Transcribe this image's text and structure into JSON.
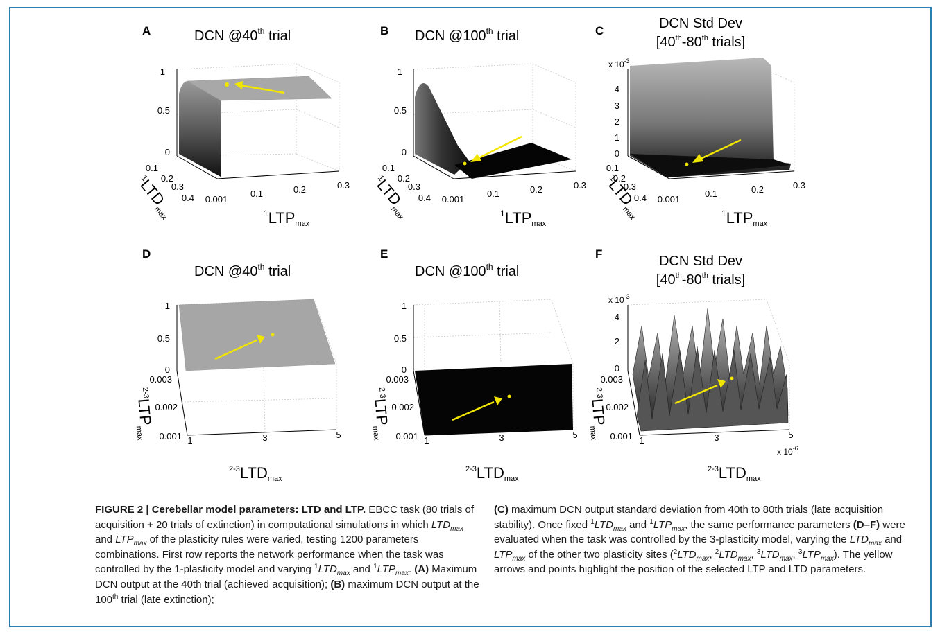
{
  "figure": {
    "panels": [
      {
        "letter": "A",
        "title": "DCN @40",
        "title_sup": "th",
        "title_end": " trial"
      },
      {
        "letter": "B",
        "title": "DCN  @100",
        "title_sup": "th",
        "title_end": " trial"
      },
      {
        "letter": "C",
        "title": "DCN Std Dev",
        "title2_pre": "[40",
        "title2_sup1": "th",
        "title2_mid": "-80",
        "title2_sup2": "th",
        "title2_end": " trials]",
        "exponent": "x 10",
        "exponent_sup": "-3"
      },
      {
        "letter": "D",
        "title": "DCN @40",
        "title_sup": "th",
        "title_end": " trial"
      },
      {
        "letter": "E",
        "title": "DCN  @100",
        "title_sup": "th",
        "title_end": " trial"
      },
      {
        "letter": "F",
        "title": "DCN Std Dev",
        "title2_pre": "[40",
        "title2_sup1": "th",
        "title2_mid": "-80",
        "title2_sup2": "th",
        "title2_end": " trials]",
        "exponent": "x 10",
        "exponent_sup": "-3",
        "x_exponent": "x 10",
        "x_exponent_sup": "-6"
      }
    ],
    "row1": {
      "z_ticks": [
        "1",
        "0.5",
        "0"
      ],
      "c_z_ticks": [
        "4",
        "3",
        "2",
        "1",
        "0"
      ],
      "y_ticks": [
        "0.1",
        "0.2",
        "0.3",
        "0.4"
      ],
      "x_ticks": [
        "0.001",
        "0.1",
        "0.2",
        "0.3"
      ],
      "y_label_sup": "1",
      "y_label": "LTD",
      "y_label_sub": "max",
      "x_label_sup": "1",
      "x_label": "LTP",
      "x_label_sub": "max"
    },
    "row2": {
      "z_ticks": [
        "1",
        "0.5",
        "0"
      ],
      "f_z_ticks": [
        "4",
        "2",
        "0"
      ],
      "y_ticks": [
        "0.003",
        "0.002",
        "0.001"
      ],
      "x_ticks": [
        "1",
        "3",
        "5"
      ],
      "y_label_sup": "2-3",
      "y_label": "LTP",
      "y_label_sub": "max",
      "x_label_sup": "2-3",
      "x_label": "LTD",
      "x_label_sub": "max"
    }
  },
  "caption": {
    "heading": "FIGURE 2 | Cerebellar model parameters: LTD and LTP.",
    "p1": " EBCC task (80 trials of acquisition + 20 trials of extinction) in computational simulations in which ",
    "ltd": "LTD",
    "max": "max",
    "and": " and ",
    "ltp": "LTP",
    "p2": " of the plasticity rules were varied, testing 1200 parameters combinations. First row reports the network performance when the task was controlled by the 1-plasticity model and varying ",
    "one": "1",
    "p3": ". ",
    "A": "(A)",
    "p4": " Maximum DCN output at the 40th trial (achieved acquisition); ",
    "B": "(B)",
    "p5": " maximum DCN output at the 100",
    "th": "th",
    "p6": " trial (late extinction); ",
    "C": "(C)",
    "p7": " maximum DCN output standard deviation from 40th to 80th trials (late acquisition stability). Once fixed ",
    "p8": ", the same performance parameters ",
    "DF": "(D–F)",
    "p9": " were evaluated when the task was controlled by the 3-plasticity model, varying the ",
    "p10": " of the other two plasticity sites (",
    "two": "2",
    "three": "3",
    "comma": ", ",
    "p11": "). The yellow arrows and points highlight the position of the selected LTP and LTD parameters."
  }
}
